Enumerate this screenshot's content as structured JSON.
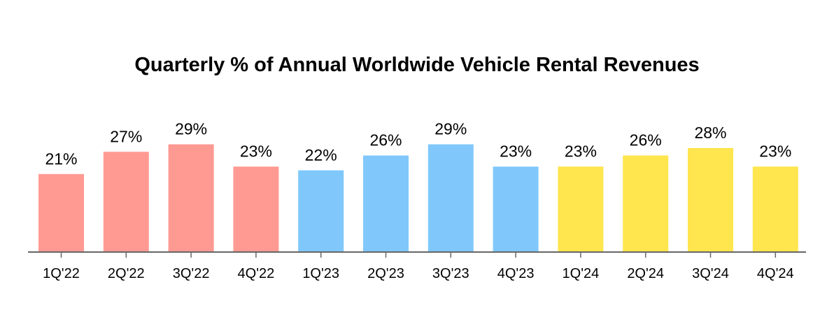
{
  "chart_data": {
    "type": "bar",
    "title": "Quarterly % of Annual Worldwide Vehicle Rental Revenues",
    "xlabel": "",
    "ylabel": "",
    "ylim": [
      0,
      30
    ],
    "grid": false,
    "legend": "none",
    "categories": [
      "1Q'22",
      "2Q'22",
      "3Q'22",
      "4Q'22",
      "1Q'23",
      "2Q'23",
      "3Q'23",
      "4Q'23",
      "1Q'24",
      "2Q'24",
      "3Q'24",
      "4Q'24"
    ],
    "values": [
      21,
      27,
      29,
      23,
      22,
      26,
      29,
      23,
      23,
      26,
      28,
      23
    ],
    "data_labels": [
      "21%",
      "27%",
      "29%",
      "23%",
      "22%",
      "26%",
      "29%",
      "23%",
      "23%",
      "26%",
      "28%",
      "23%"
    ],
    "bar_colors": [
      "#FF9A93",
      "#FF9A93",
      "#FF9A93",
      "#FF9A93",
      "#80C8FC",
      "#80C8FC",
      "#80C8FC",
      "#80C8FC",
      "#FFE54E",
      "#FFE54E",
      "#FFE54E",
      "#FFE54E"
    ],
    "axis_color": "#666666"
  }
}
